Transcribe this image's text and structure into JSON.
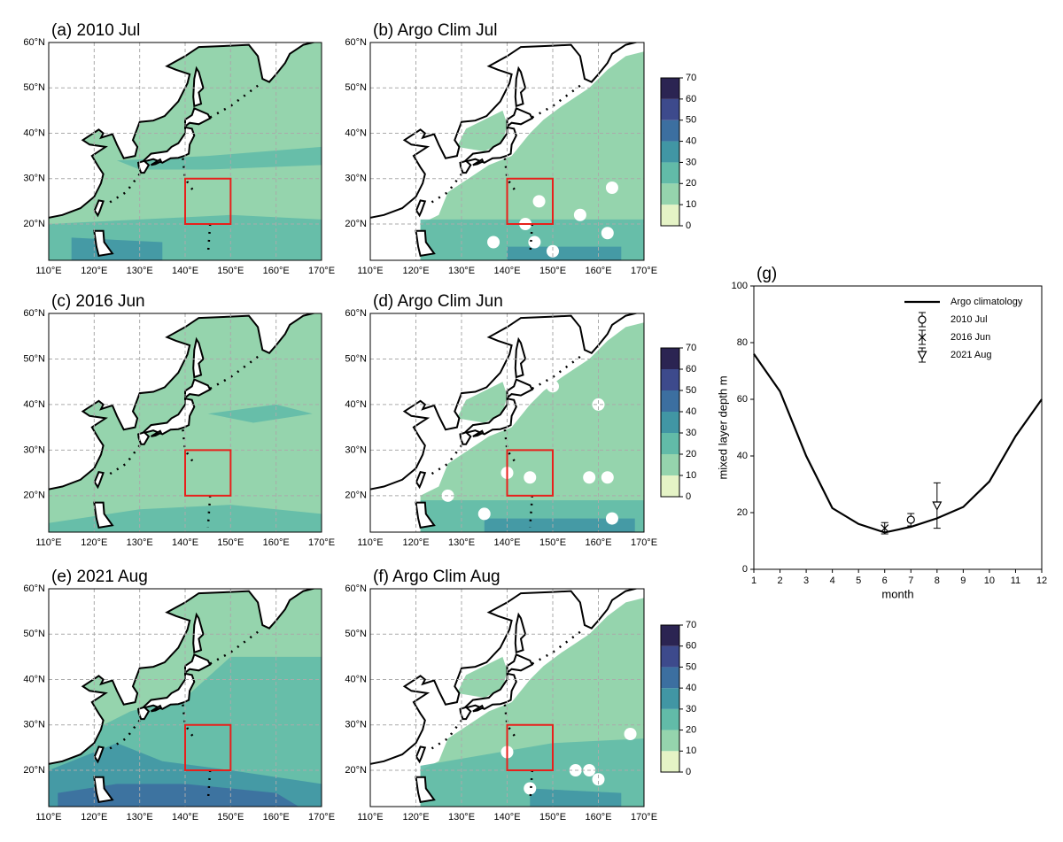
{
  "chart_data": [
    {
      "type": "map",
      "title": "(a) 2010 Jul",
      "xlim": [
        110,
        170
      ],
      "ylim": [
        12,
        60
      ],
      "xticks": [
        {
          "value": 110,
          "label": "110°E"
        },
        {
          "value": 120,
          "label": "120°E"
        },
        {
          "value": 130,
          "label": "130°E"
        },
        {
          "value": 140,
          "label": "140°E"
        },
        {
          "value": 150,
          "label": "150°E"
        },
        {
          "value": 160,
          "label": "160°E"
        },
        {
          "value": 170,
          "label": "170°E"
        }
      ],
      "yticks": [
        {
          "value": 20,
          "label": "20°N"
        },
        {
          "value": 30,
          "label": "30°N"
        },
        {
          "value": 40,
          "label": "40°N"
        },
        {
          "value": 50,
          "label": "50°N"
        },
        {
          "value": 60,
          "label": "60°N"
        }
      ],
      "grid": true,
      "box": {
        "lon": [
          140,
          150
        ],
        "lat": [
          20,
          30
        ],
        "color": "#e8201c"
      }
    },
    {
      "type": "map",
      "title": "(b) Argo Clim Jul",
      "xlim": [
        110,
        170
      ],
      "ylim": [
        12,
        60
      ],
      "xticks": [
        {
          "value": 110,
          "label": "110°E"
        },
        {
          "value": 120,
          "label": "120°E"
        },
        {
          "value": 130,
          "label": "130°E"
        },
        {
          "value": 140,
          "label": "140°E"
        },
        {
          "value": 150,
          "label": "150°E"
        },
        {
          "value": 160,
          "label": "160°E"
        },
        {
          "value": 170,
          "label": "170°E"
        }
      ],
      "yticks": [
        {
          "value": 20,
          "label": "20°N"
        },
        {
          "value": 30,
          "label": "30°N"
        },
        {
          "value": 40,
          "label": "40°N"
        },
        {
          "value": 50,
          "label": "50°N"
        },
        {
          "value": 60,
          "label": "60°N"
        }
      ],
      "grid": true,
      "box": {
        "lon": [
          140,
          150
        ],
        "lat": [
          20,
          30
        ],
        "color": "#e8201c"
      },
      "colorbar": {
        "ticks": [
          0,
          10,
          20,
          30,
          40,
          50,
          60,
          70
        ],
        "colors": [
          "#e5f3c6",
          "#95d4ad",
          "#62bba8",
          "#4196a4",
          "#3c6fa0",
          "#3d4a8c",
          "#2b2452"
        ]
      }
    },
    {
      "type": "map",
      "title": "(c) 2016 Jun",
      "xlim": [
        110,
        170
      ],
      "ylim": [
        12,
        60
      ],
      "xticks": [
        {
          "value": 110,
          "label": "110°E"
        },
        {
          "value": 120,
          "label": "120°E"
        },
        {
          "value": 130,
          "label": "130°E"
        },
        {
          "value": 140,
          "label": "140°E"
        },
        {
          "value": 150,
          "label": "150°E"
        },
        {
          "value": 160,
          "label": "160°E"
        },
        {
          "value": 170,
          "label": "170°E"
        }
      ],
      "yticks": [
        {
          "value": 20,
          "label": "20°N"
        },
        {
          "value": 30,
          "label": "30°N"
        },
        {
          "value": 40,
          "label": "40°N"
        },
        {
          "value": 50,
          "label": "50°N"
        },
        {
          "value": 60,
          "label": "60°N"
        }
      ],
      "grid": true,
      "box": {
        "lon": [
          140,
          150
        ],
        "lat": [
          20,
          30
        ],
        "color": "#e8201c"
      }
    },
    {
      "type": "map",
      "title": "(d) Argo Clim Jun",
      "xlim": [
        110,
        170
      ],
      "ylim": [
        12,
        60
      ],
      "xticks": [
        {
          "value": 110,
          "label": "110°E"
        },
        {
          "value": 120,
          "label": "120°E"
        },
        {
          "value": 130,
          "label": "130°E"
        },
        {
          "value": 140,
          "label": "140°E"
        },
        {
          "value": 150,
          "label": "150°E"
        },
        {
          "value": 160,
          "label": "160°E"
        },
        {
          "value": 170,
          "label": "170°E"
        }
      ],
      "yticks": [
        {
          "value": 20,
          "label": "20°N"
        },
        {
          "value": 30,
          "label": "30°N"
        },
        {
          "value": 40,
          "label": "40°N"
        },
        {
          "value": 50,
          "label": "50°N"
        },
        {
          "value": 60,
          "label": "60°N"
        }
      ],
      "grid": true,
      "box": {
        "lon": [
          140,
          150
        ],
        "lat": [
          20,
          30
        ],
        "color": "#e8201c"
      },
      "colorbar": {
        "ticks": [
          0,
          10,
          20,
          30,
          40,
          50,
          60,
          70
        ],
        "colors": [
          "#e5f3c6",
          "#95d4ad",
          "#62bba8",
          "#4196a4",
          "#3c6fa0",
          "#3d4a8c",
          "#2b2452"
        ]
      }
    },
    {
      "type": "map",
      "title": "(e) 2021 Aug",
      "xlim": [
        110,
        170
      ],
      "ylim": [
        12,
        60
      ],
      "xticks": [
        {
          "value": 110,
          "label": "110°E"
        },
        {
          "value": 120,
          "label": "120°E"
        },
        {
          "value": 130,
          "label": "130°E"
        },
        {
          "value": 140,
          "label": "140°E"
        },
        {
          "value": 150,
          "label": "150°E"
        },
        {
          "value": 160,
          "label": "160°E"
        },
        {
          "value": 170,
          "label": "170°E"
        }
      ],
      "yticks": [
        {
          "value": 20,
          "label": "20°N"
        },
        {
          "value": 30,
          "label": "30°N"
        },
        {
          "value": 40,
          "label": "40°N"
        },
        {
          "value": 50,
          "label": "50°N"
        },
        {
          "value": 60,
          "label": "60°N"
        }
      ],
      "grid": true,
      "box": {
        "lon": [
          140,
          150
        ],
        "lat": [
          20,
          30
        ],
        "color": "#e8201c"
      }
    },
    {
      "type": "map",
      "title": "(f) Argo Clim Aug",
      "xlim": [
        110,
        170
      ],
      "ylim": [
        12,
        60
      ],
      "xticks": [
        {
          "value": 110,
          "label": "110°E"
        },
        {
          "value": 120,
          "label": "120°E"
        },
        {
          "value": 130,
          "label": "130°E"
        },
        {
          "value": 140,
          "label": "140°E"
        },
        {
          "value": 150,
          "label": "150°E"
        },
        {
          "value": 160,
          "label": "160°E"
        },
        {
          "value": 170,
          "label": "170°E"
        }
      ],
      "yticks": [
        {
          "value": 20,
          "label": "20°N"
        },
        {
          "value": 30,
          "label": "30°N"
        },
        {
          "value": 40,
          "label": "40°N"
        },
        {
          "value": 50,
          "label": "50°N"
        },
        {
          "value": 60,
          "label": "60°N"
        }
      ],
      "grid": true,
      "box": {
        "lon": [
          140,
          150
        ],
        "lat": [
          20,
          30
        ],
        "color": "#e8201c"
      },
      "colorbar": {
        "ticks": [
          0,
          10,
          20,
          30,
          40,
          50,
          60,
          70
        ],
        "colors": [
          "#e5f3c6",
          "#95d4ad",
          "#62bba8",
          "#4196a4",
          "#3c6fa0",
          "#3d4a8c",
          "#2b2452"
        ]
      }
    },
    {
      "type": "line",
      "title": "(g)",
      "xlabel": "month",
      "ylabel": "mixed layer depth m",
      "x": [
        1,
        2,
        3,
        4,
        5,
        6,
        7,
        8,
        9,
        10,
        11,
        12
      ],
      "xlim": [
        1,
        12
      ],
      "ylim": [
        0,
        100
      ],
      "xticks": [
        1,
        2,
        3,
        4,
        5,
        6,
        7,
        8,
        9,
        10,
        11,
        12
      ],
      "yticks": [
        0,
        20,
        40,
        60,
        80,
        100
      ],
      "legend": "upper right",
      "series": [
        {
          "name": "Argo climatology",
          "color": "#000000",
          "values": [
            76,
            62.8,
            40,
            21.6,
            16,
            13,
            15,
            18,
            22,
            31,
            47,
            60
          ]
        },
        {
          "name": "2010 Jul",
          "color": "#000000",
          "marker": "o",
          "x": [
            7
          ],
          "values": [
            17.5
          ],
          "errors": [
            2.2
          ]
        },
        {
          "name": "2016 Jun",
          "color": "#000000",
          "marker": "x",
          "x": [
            6
          ],
          "values": [
            14.5
          ],
          "errors": [
            2
          ]
        },
        {
          "name": "2021 Aug",
          "color": "#000000",
          "marker": "v",
          "x": [
            8
          ],
          "values": [
            22.5
          ],
          "errors": [
            8
          ]
        }
      ]
    }
  ]
}
